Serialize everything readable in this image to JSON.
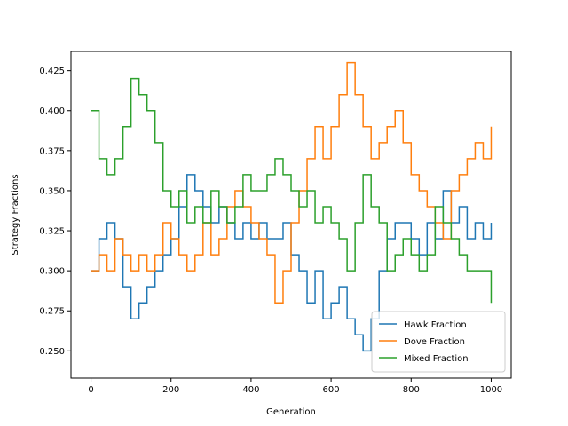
{
  "chart_data": {
    "type": "line",
    "title": "",
    "xlabel": "Generation",
    "ylabel": "Strategy Fractions",
    "xlim": [
      -50,
      1050
    ],
    "ylim": [
      0.233,
      0.437
    ],
    "xticks": [
      0,
      200,
      400,
      600,
      800,
      1000
    ],
    "xtick_labels": [
      "0",
      "200",
      "400",
      "600",
      "800",
      "1000"
    ],
    "yticks": [
      0.25,
      0.275,
      0.3,
      0.325,
      0.35,
      0.375,
      0.4,
      0.425
    ],
    "ytick_labels": [
      "0.250",
      "0.275",
      "0.300",
      "0.325",
      "0.350",
      "0.375",
      "0.400",
      "0.425"
    ],
    "grid": false,
    "legend_position": "lower-right",
    "series": [
      {
        "name": "Hawk Fraction",
        "color": "#1f77b4",
        "x": [
          0,
          20,
          40,
          60,
          80,
          100,
          120,
          140,
          160,
          180,
          200,
          220,
          240,
          260,
          280,
          300,
          320,
          340,
          360,
          380,
          400,
          420,
          440,
          460,
          480,
          500,
          520,
          540,
          560,
          580,
          600,
          620,
          640,
          660,
          680,
          700,
          720,
          740,
          760,
          780,
          800,
          820,
          840,
          860,
          880,
          900,
          920,
          940,
          960,
          980,
          1000
        ],
        "values": [
          0.3,
          0.32,
          0.33,
          0.32,
          0.29,
          0.27,
          0.28,
          0.29,
          0.3,
          0.31,
          0.32,
          0.34,
          0.36,
          0.35,
          0.34,
          0.33,
          0.34,
          0.33,
          0.32,
          0.33,
          0.32,
          0.33,
          0.32,
          0.32,
          0.33,
          0.31,
          0.3,
          0.28,
          0.3,
          0.27,
          0.28,
          0.29,
          0.27,
          0.26,
          0.25,
          0.27,
          0.3,
          0.32,
          0.33,
          0.33,
          0.32,
          0.31,
          0.33,
          0.32,
          0.35,
          0.33,
          0.34,
          0.32,
          0.33,
          0.32,
          0.33
        ]
      },
      {
        "name": "Dove Fraction",
        "color": "#ff7f0e",
        "x": [
          0,
          20,
          40,
          60,
          80,
          100,
          120,
          140,
          160,
          180,
          200,
          220,
          240,
          260,
          280,
          300,
          320,
          340,
          360,
          380,
          400,
          420,
          440,
          460,
          480,
          500,
          520,
          540,
          560,
          580,
          600,
          620,
          640,
          660,
          680,
          700,
          720,
          740,
          760,
          780,
          800,
          820,
          840,
          860,
          880,
          900,
          920,
          940,
          960,
          980,
          1000
        ],
        "values": [
          0.3,
          0.31,
          0.3,
          0.32,
          0.31,
          0.3,
          0.31,
          0.3,
          0.31,
          0.33,
          0.32,
          0.31,
          0.3,
          0.31,
          0.33,
          0.31,
          0.32,
          0.34,
          0.35,
          0.34,
          0.33,
          0.32,
          0.31,
          0.28,
          0.3,
          0.33,
          0.35,
          0.37,
          0.39,
          0.37,
          0.39,
          0.41,
          0.43,
          0.41,
          0.39,
          0.37,
          0.38,
          0.39,
          0.4,
          0.38,
          0.36,
          0.35,
          0.34,
          0.33,
          0.32,
          0.35,
          0.36,
          0.37,
          0.38,
          0.37,
          0.39
        ]
      },
      {
        "name": "Mixed Fraction",
        "color": "#2ca02c",
        "x": [
          0,
          20,
          40,
          60,
          80,
          100,
          120,
          140,
          160,
          180,
          200,
          220,
          240,
          260,
          280,
          300,
          320,
          340,
          360,
          380,
          400,
          420,
          440,
          460,
          480,
          500,
          520,
          540,
          560,
          580,
          600,
          620,
          640,
          660,
          680,
          700,
          720,
          740,
          760,
          780,
          800,
          820,
          840,
          860,
          880,
          900,
          920,
          940,
          960,
          980,
          1000
        ],
        "values": [
          0.4,
          0.37,
          0.36,
          0.37,
          0.39,
          0.42,
          0.41,
          0.4,
          0.38,
          0.35,
          0.34,
          0.35,
          0.33,
          0.34,
          0.33,
          0.35,
          0.34,
          0.33,
          0.34,
          0.36,
          0.35,
          0.35,
          0.36,
          0.37,
          0.36,
          0.35,
          0.34,
          0.35,
          0.33,
          0.34,
          0.33,
          0.32,
          0.3,
          0.33,
          0.36,
          0.34,
          0.33,
          0.3,
          0.31,
          0.32,
          0.31,
          0.3,
          0.31,
          0.34,
          0.33,
          0.32,
          0.31,
          0.3,
          0.3,
          0.3,
          0.28
        ]
      }
    ]
  }
}
